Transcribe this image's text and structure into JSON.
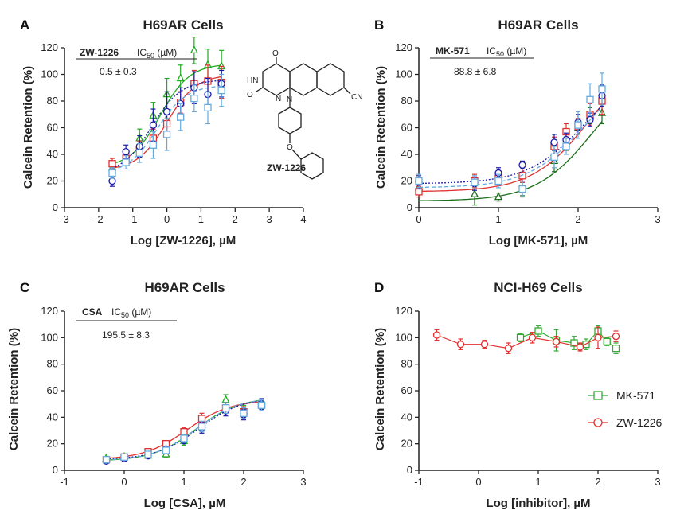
{
  "chart_data": [
    {
      "panel_label": "A",
      "type": "scatter",
      "title": "H69AR Cells",
      "xlabel": "Log [ZW-1226], µM",
      "ylabel": "Calcein Retention (%)",
      "xlim": [
        -3,
        4
      ],
      "ylim": [
        0,
        120
      ],
      "xticks": [
        -3,
        -2,
        -1,
        0,
        1,
        2,
        3,
        4
      ],
      "yticks": [
        0,
        20,
        40,
        60,
        80,
        100,
        120
      ],
      "annotation": {
        "compound": "ZW-1226",
        "header": "IC",
        "header_sub": "50",
        "header_unit": " (µM)",
        "value": "0.5 ± 0.3"
      },
      "structure_label": "ZW-1226",
      "structure_atoms": {
        "o1": "O",
        "hn": "HN",
        "o2": "O",
        "n1": "N",
        "n2": "N",
        "cn": "CN",
        "o3": "O"
      },
      "series": [
        {
          "color": "#22aa22",
          "marker": "triangle",
          "line": "solid",
          "fit": {
            "bottom": 30,
            "top": 108,
            "logec50": -0.2,
            "hill": 1.0
          },
          "x": [
            -1.6,
            -1.2,
            -0.8,
            -0.4,
            0,
            0.4,
            0.8,
            1.2,
            1.6
          ],
          "y": [
            30,
            37,
            52,
            69,
            85,
            97,
            118,
            107,
            106
          ],
          "err": [
            4,
            5,
            7,
            10,
            12,
            10,
            10,
            12,
            12
          ]
        },
        {
          "color": "#e03030",
          "marker": "square",
          "line": "solid",
          "fit": {
            "bottom": 28,
            "top": 100,
            "logec50": 0.0,
            "hill": 1.0
          },
          "x": [
            -1.6,
            -1.2,
            -0.8,
            -0.4,
            0,
            0.4,
            0.8,
            1.2,
            1.6
          ],
          "y": [
            33,
            37,
            44,
            52,
            63,
            79,
            93,
            95,
            94
          ],
          "err": [
            4,
            5,
            6,
            7,
            8,
            8,
            10,
            12,
            12
          ]
        },
        {
          "color": "#1a1aaa",
          "marker": "circle",
          "line": "dotted",
          "fit": {
            "bottom": 25,
            "top": 96,
            "logec50": -0.45,
            "hill": 1.0
          },
          "x": [
            -1.6,
            -1.2,
            -0.8,
            -0.4,
            0,
            0.4,
            0.8,
            1.2,
            1.6
          ],
          "y": [
            20,
            42,
            46,
            62,
            72,
            78,
            90,
            85,
            93
          ],
          "err": [
            4,
            5,
            8,
            12,
            15,
            12,
            12,
            12,
            10
          ]
        },
        {
          "color": "#66aadd",
          "marker": "square",
          "line": "dashed",
          "fit": {
            "bottom": 25,
            "top": 92,
            "logec50": -0.3,
            "hill": 1.0
          },
          "x": [
            -1.6,
            -1.2,
            -0.8,
            -0.4,
            0,
            0.4,
            0.8,
            1.2,
            1.6
          ],
          "y": [
            26,
            34,
            41,
            47,
            55,
            68,
            82,
            75,
            88
          ],
          "err": [
            4,
            5,
            7,
            10,
            12,
            10,
            10,
            12,
            12
          ]
        }
      ]
    },
    {
      "panel_label": "B",
      "type": "scatter",
      "title": "H69AR Cells",
      "xlabel": "Log [MK-571], µM",
      "ylabel": "Calcein Retention (%)",
      "xlim": [
        0,
        3
      ],
      "ylim": [
        0,
        120
      ],
      "xticks": [
        0,
        1,
        2,
        3
      ],
      "yticks": [
        0,
        20,
        40,
        60,
        80,
        100,
        120
      ],
      "annotation": {
        "compound": "MK-571",
        "header": "IC",
        "header_sub": "50",
        "header_unit": " (µM)",
        "value": "88.8 ± 6.8"
      },
      "series": [
        {
          "color": "#1a6e1a",
          "marker": "triangle",
          "line": "solid",
          "fit": {
            "bottom": 5,
            "top": 110,
            "logec50": 2.2,
            "hill": 1.2
          },
          "x": [
            0,
            0.7,
            1.0,
            1.3,
            1.7,
            1.85,
            2.0,
            2.15,
            2.3
          ],
          "y": [
            15,
            10,
            8,
            14,
            35,
            48,
            60,
            69,
            71
          ],
          "err": [
            5,
            8,
            3,
            5,
            8,
            5,
            5,
            6,
            8
          ]
        },
        {
          "color": "#e03030",
          "marker": "square",
          "line": "solid",
          "fit": {
            "bottom": 12,
            "top": 120,
            "logec50": 2.15,
            "hill": 1.2
          },
          "x": [
            0,
            0.7,
            1.0,
            1.3,
            1.7,
            1.85,
            2.0,
            2.15,
            2.3
          ],
          "y": [
            12,
            20,
            22,
            24,
            46,
            57,
            61,
            70,
            80
          ],
          "err": [
            4,
            5,
            4,
            5,
            7,
            6,
            6,
            8,
            10
          ]
        },
        {
          "color": "#1a1aaa",
          "marker": "circle",
          "line": "dotted",
          "fit": {
            "bottom": 18,
            "top": 110,
            "logec50": 2.1,
            "hill": 1.2
          },
          "x": [
            0,
            0.7,
            1.0,
            1.3,
            1.7,
            1.85,
            2.0,
            2.15,
            2.3
          ],
          "y": [
            19,
            18,
            26,
            32,
            49,
            51,
            64,
            66,
            84
          ],
          "err": [
            5,
            5,
            4,
            3,
            6,
            5,
            6,
            5,
            8
          ]
        },
        {
          "color": "#66aadd",
          "marker": "square",
          "line": "dashed",
          "fit": {
            "bottom": 15,
            "top": 110,
            "logec50": 2.1,
            "hill": 1.2
          },
          "x": [
            0,
            0.7,
            1.0,
            1.3,
            1.7,
            1.85,
            2.0,
            2.15,
            2.3
          ],
          "y": [
            20,
            19,
            20,
            14,
            38,
            46,
            62,
            81,
            89
          ],
          "err": [
            5,
            5,
            5,
            6,
            8,
            6,
            10,
            12,
            12
          ]
        }
      ]
    },
    {
      "panel_label": "C",
      "type": "scatter",
      "title": "H69AR Cells",
      "xlabel": "Log [CSA], µM",
      "ylabel": "Calcein Retention (%)",
      "xlim": [
        -1,
        3
      ],
      "ylim": [
        0,
        120
      ],
      "xticks": [
        -1,
        0,
        1,
        2,
        3
      ],
      "yticks": [
        0,
        20,
        40,
        60,
        80,
        100,
        120
      ],
      "annotation": {
        "compound": "CSA",
        "header": "IC",
        "header_sub": "50",
        "header_unit": " (µM)",
        "value": "195.5 ± 8.3"
      },
      "series": [
        {
          "color": "#22aa22",
          "marker": "triangle",
          "line": "solid",
          "fit": {
            "bottom": 7,
            "top": 55,
            "logec50": 1.2,
            "hill": 1.2
          },
          "x": [
            -0.3,
            0,
            0.4,
            0.7,
            1.0,
            1.3,
            1.7,
            2.0,
            2.3
          ],
          "y": [
            9,
            10,
            11,
            12,
            22,
            34,
            53,
            45,
            50
          ],
          "err": [
            1,
            2,
            1,
            2,
            3,
            4,
            4,
            4,
            4
          ]
        },
        {
          "color": "#e03030",
          "marker": "square",
          "line": "solid",
          "fit": {
            "bottom": 8,
            "top": 53,
            "logec50": 1.05,
            "hill": 1.2
          },
          "x": [
            -0.3,
            0,
            0.4,
            0.7,
            1.0,
            1.3,
            1.7,
            2.0,
            2.3
          ],
          "y": [
            8,
            10,
            14,
            20,
            29,
            39,
            47,
            44,
            49
          ],
          "err": [
            1,
            2,
            1,
            2,
            3,
            4,
            4,
            4,
            4
          ]
        },
        {
          "color": "#1a1aaa",
          "marker": "circle",
          "line": "dotted",
          "fit": {
            "bottom": 8,
            "top": 55,
            "logec50": 1.25,
            "hill": 1.2
          },
          "x": [
            -0.3,
            0,
            0.4,
            0.7,
            1.0,
            1.3,
            1.7,
            2.0,
            2.3
          ],
          "y": [
            7,
            9,
            11,
            16,
            23,
            32,
            45,
            42,
            50
          ],
          "err": [
            1,
            2,
            1,
            2,
            3,
            4,
            4,
            4,
            4
          ]
        },
        {
          "color": "#66aadd",
          "marker": "square",
          "line": "dashed",
          "fit": {
            "bottom": 7,
            "top": 55,
            "logec50": 1.2,
            "hill": 1.2
          },
          "x": [
            -0.3,
            0,
            0.4,
            0.7,
            1.0,
            1.3,
            1.7,
            2.0,
            2.3
          ],
          "y": [
            8,
            10,
            12,
            15,
            24,
            33,
            47,
            43,
            49
          ],
          "err": [
            1,
            2,
            1,
            2,
            3,
            4,
            4,
            4,
            4
          ]
        }
      ]
    },
    {
      "panel_label": "D",
      "type": "line",
      "title": "NCI-H69 Cells",
      "xlabel": "Log [inhibitor], µM",
      "ylabel": "Calcein Retention (%)",
      "xlim": [
        -1,
        3
      ],
      "ylim": [
        0,
        120
      ],
      "xticks": [
        -1,
        0,
        1,
        2,
        3
      ],
      "yticks": [
        0,
        20,
        40,
        60,
        80,
        100,
        120
      ],
      "legend_position": "right",
      "series": [
        {
          "name": "MK-571",
          "color": "#33aa33",
          "marker": "square",
          "x": [
            0.7,
            1.0,
            1.3,
            1.6,
            1.8,
            2.0,
            2.15,
            2.3
          ],
          "y": [
            100,
            105,
            98,
            96,
            95,
            105,
            97,
            92
          ],
          "err": [
            3,
            4,
            8,
            5,
            4,
            4,
            3,
            4
          ]
        },
        {
          "name": "ZW-1226",
          "color": "#e03030",
          "marker": "circle",
          "x": [
            -0.7,
            -0.3,
            0.1,
            0.5,
            0.9,
            1.3,
            1.7,
            2.0,
            2.3
          ],
          "y": [
            102,
            95,
            95,
            92,
            100,
            97,
            93,
            100,
            101
          ],
          "err": [
            4,
            4,
            3,
            4,
            4,
            4,
            3,
            8,
            4
          ]
        }
      ]
    }
  ]
}
